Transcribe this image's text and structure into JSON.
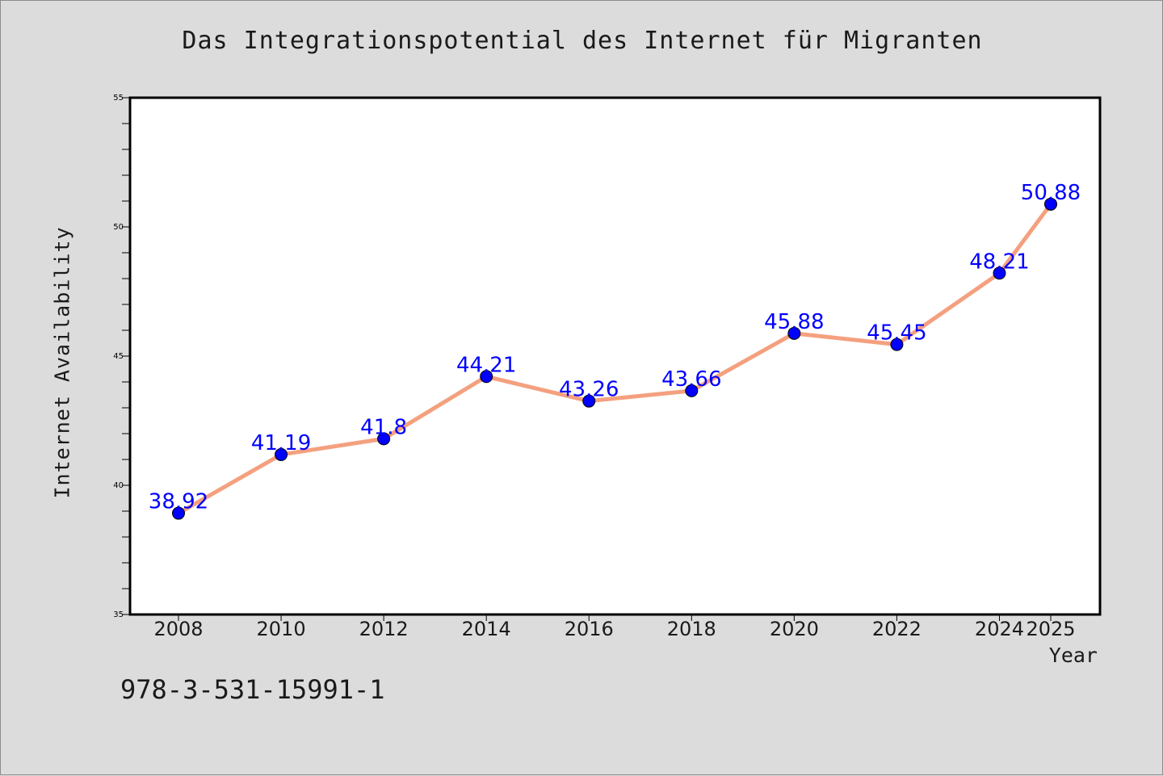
{
  "chart_data": {
    "type": "line",
    "title": "Das Integrationspotential des Internet für Migranten",
    "xlabel": "Year",
    "ylabel": "Internet Availability",
    "x": [
      2008,
      2010,
      2012,
      2014,
      2016,
      2018,
      2020,
      2022,
      2024,
      2025
    ],
    "series": [
      {
        "values": [
          38.92,
          41.19,
          41.8,
          44.21,
          43.26,
          43.66,
          45.88,
          45.45,
          48.21,
          50.88
        ],
        "data_labels": [
          "38.92",
          "41.19",
          "41.8",
          "44.21",
          "43.26",
          "43.66",
          "45.88",
          "45.45",
          "48.21",
          "50.88"
        ],
        "line_color": "#f4a07f",
        "marker_color": "#0000ff",
        "label_color": "#0000ff"
      }
    ],
    "x_ticks": [
      "2008",
      "2010",
      "2012",
      "2014",
      "2016",
      "2018",
      "2020",
      "2022",
      "2024",
      "2025"
    ],
    "y_ticks": [
      "35",
      "40",
      "45",
      "50",
      "55"
    ],
    "ylim": [
      35,
      55
    ],
    "y_minor_step": 1,
    "grid": false
  },
  "annotation": "978-3-531-15991-1",
  "colors": {
    "background": "#dcdcdc",
    "plot_area": "#ffffff",
    "axis": "#000000"
  }
}
